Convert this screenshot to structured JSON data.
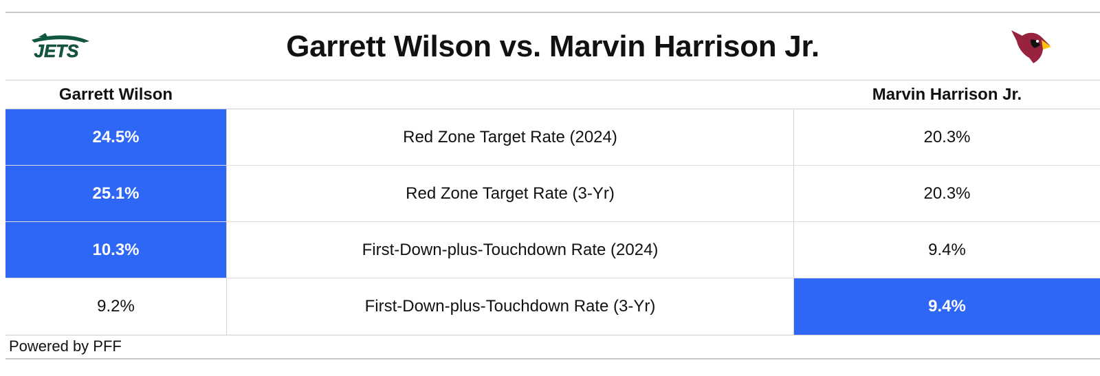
{
  "title": "Garrett Wilson vs. Marvin Harrison Jr.",
  "players": {
    "left": "Garrett Wilson",
    "right": "Marvin Harrison Jr."
  },
  "logos": {
    "left": "JETS",
    "left_icon": "jets-logo-icon",
    "right_icon": "cardinals-logo-icon"
  },
  "colors": {
    "highlight": "#2e66f5",
    "jets_green": "#125740",
    "cardinals_red": "#97233f"
  },
  "footer": "Powered by PFF",
  "chart_data": {
    "type": "table",
    "title": "Garrett Wilson vs. Marvin Harrison Jr.",
    "columns": [
      "Garrett Wilson",
      "",
      "Marvin Harrison Jr."
    ],
    "rows": [
      {
        "metric": "Red Zone Target Rate (2024)",
        "left": "24.5%",
        "right": "20.3%",
        "leader": "left"
      },
      {
        "metric": "Red Zone Target Rate (3-Yr)",
        "left": "25.1%",
        "right": "20.3%",
        "leader": "left"
      },
      {
        "metric": "First-Down-plus-Touchdown Rate (2024)",
        "left": "10.3%",
        "right": "9.4%",
        "leader": "left"
      },
      {
        "metric": "First-Down-plus-Touchdown Rate (3-Yr)",
        "left": "9.2%",
        "right": "9.4%",
        "leader": "right"
      }
    ]
  }
}
